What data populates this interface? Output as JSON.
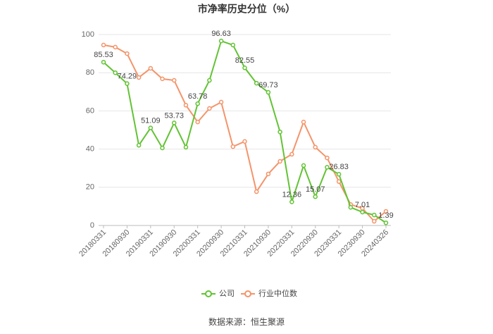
{
  "chart_data": {
    "type": "line",
    "title": "市净率历史分位（%）",
    "categories": [
      "20180331",
      null,
      "20180930",
      null,
      "20190331",
      null,
      "20190930",
      null,
      "20200331",
      null,
      "20200930",
      null,
      "20210331",
      null,
      "20210930",
      null,
      "20220331",
      null,
      "20220930",
      null,
      "20230331",
      null,
      "20230930",
      null,
      "20240326"
    ],
    "series": [
      {
        "name": "公司",
        "color": "#62c334",
        "values": [
          85.53,
          80,
          74.29,
          42,
          51.09,
          40.6,
          53.73,
          41,
          63.78,
          76,
          96.63,
          94.5,
          82.55,
          74.5,
          69.73,
          49,
          12.36,
          31.4,
          15.07,
          30.5,
          26.83,
          9.5,
          7.01,
          5.5,
          1.39
        ]
      },
      {
        "name": "行业中位数",
        "color": "#f4946a",
        "values": [
          94.5,
          93.4,
          90,
          77.5,
          82.3,
          76.8,
          76,
          63,
          54.2,
          61.3,
          64.6,
          41.3,
          44,
          17.7,
          27,
          33.6,
          37.3,
          54.2,
          41,
          35.4,
          23,
          11,
          9,
          2.2,
          7.4
        ]
      }
    ],
    "ylim": [
      0,
      100
    ],
    "yticks": [
      0,
      20,
      40,
      60,
      80,
      100
    ],
    "grid": true,
    "source": "数据来源：恒生聚源"
  }
}
